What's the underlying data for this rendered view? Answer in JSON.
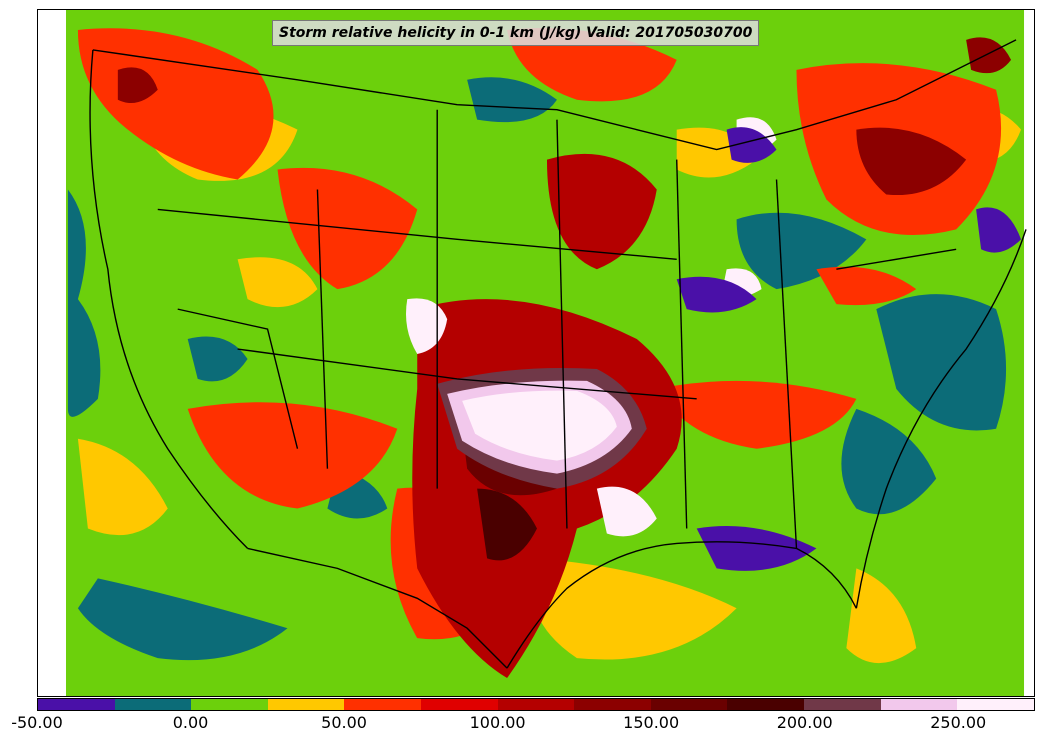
{
  "title": "Storm relative helicity in 0-1 km (J/kg) Valid: 201705030700",
  "colorbar": {
    "ticks": [
      "-50.00",
      "0.00",
      "50.00",
      "100.00",
      "150.00",
      "200.00",
      "250.00"
    ],
    "colors": [
      "#4a10a8",
      "#0c6c78",
      "#6cd00c",
      "#ffc800",
      "#ff3000",
      "#e00000",
      "#b40000",
      "#8c0000",
      "#6a0000",
      "#4a0000",
      "#703848",
      "#f2c8ec",
      "#fff0fb"
    ]
  },
  "map": {
    "projection": "Lambert conformal",
    "region": "Contiguous United States",
    "background_level_color": "#6cd00c"
  }
}
